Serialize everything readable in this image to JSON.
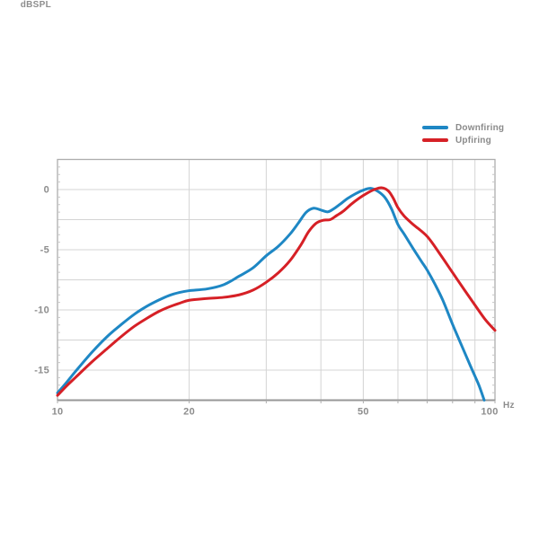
{
  "colors": {
    "background": "#ffffff",
    "grid": "#d4d4d4",
    "border": "#adadad",
    "bottom_border": "#979797",
    "minor_tick": "#c6c6c6",
    "label_text": "#8d8d8d",
    "downfiring": "#1e87c4",
    "upfiring": "#d62026"
  },
  "chart_data": {
    "type": "line",
    "title": "",
    "xlabel": "Hz",
    "ylabel": "dBSPL",
    "x_scale": "log",
    "xlim": [
      10,
      100
    ],
    "ylim": [
      -17.5,
      2.5
    ],
    "grid": true,
    "legend_position": "top-right",
    "x_tick_values": [
      10,
      20,
      50,
      100
    ],
    "x_gridline_values": [
      20,
      30,
      40,
      50,
      60,
      70,
      80,
      90
    ],
    "y_tick_values": [
      0,
      -5,
      -10,
      -15
    ],
    "y_gridline_values": [
      0,
      -2.5,
      -5,
      -7.5,
      -10,
      -12.5,
      -15
    ],
    "y_minor_tick_step": 0.625,
    "series": [
      {
        "name": "Downfiring",
        "color": "#1e87c4",
        "points": [
          [
            10,
            -16.9
          ],
          [
            10.5,
            -16.0
          ],
          [
            11,
            -15.1
          ],
          [
            12,
            -13.5
          ],
          [
            13,
            -12.2
          ],
          [
            14,
            -11.2
          ],
          [
            15,
            -10.35
          ],
          [
            16,
            -9.7
          ],
          [
            17,
            -9.2
          ],
          [
            18,
            -8.8
          ],
          [
            19,
            -8.55
          ],
          [
            20,
            -8.4
          ],
          [
            22,
            -8.25
          ],
          [
            24,
            -7.9
          ],
          [
            26,
            -7.2
          ],
          [
            28,
            -6.5
          ],
          [
            30,
            -5.5
          ],
          [
            32,
            -4.7
          ],
          [
            34,
            -3.7
          ],
          [
            35.5,
            -2.8
          ],
          [
            37,
            -1.9
          ],
          [
            38.5,
            -1.55
          ],
          [
            40,
            -1.7
          ],
          [
            41.5,
            -1.85
          ],
          [
            43,
            -1.55
          ],
          [
            44.5,
            -1.15
          ],
          [
            46,
            -0.75
          ],
          [
            48,
            -0.35
          ],
          [
            50,
            -0.05
          ],
          [
            52,
            0.1
          ],
          [
            54,
            -0.15
          ],
          [
            56,
            -0.65
          ],
          [
            58,
            -1.6
          ],
          [
            60,
            -2.9
          ],
          [
            62,
            -3.7
          ],
          [
            65,
            -4.9
          ],
          [
            68,
            -6.0
          ],
          [
            70,
            -6.7
          ],
          [
            73,
            -7.9
          ],
          [
            76,
            -9.2
          ],
          [
            80,
            -11.2
          ],
          [
            84,
            -13.0
          ],
          [
            88,
            -14.7
          ],
          [
            90,
            -15.5
          ],
          [
            92,
            -16.3
          ],
          [
            94.5,
            -17.5
          ]
        ]
      },
      {
        "name": "Upfiring",
        "color": "#d62026",
        "points": [
          [
            10,
            -17.1
          ],
          [
            10.5,
            -16.3
          ],
          [
            11,
            -15.6
          ],
          [
            12,
            -14.3
          ],
          [
            13,
            -13.2
          ],
          [
            14,
            -12.2
          ],
          [
            15,
            -11.35
          ],
          [
            16,
            -10.7
          ],
          [
            17,
            -10.15
          ],
          [
            18,
            -9.75
          ],
          [
            19,
            -9.45
          ],
          [
            20,
            -9.2
          ],
          [
            22,
            -9.05
          ],
          [
            24,
            -8.95
          ],
          [
            26,
            -8.75
          ],
          [
            28,
            -8.35
          ],
          [
            30,
            -7.7
          ],
          [
            32,
            -6.9
          ],
          [
            34,
            -5.9
          ],
          [
            36,
            -4.6
          ],
          [
            37.5,
            -3.5
          ],
          [
            39,
            -2.8
          ],
          [
            40.5,
            -2.55
          ],
          [
            42,
            -2.5
          ],
          [
            43.5,
            -2.15
          ],
          [
            45,
            -1.8
          ],
          [
            47,
            -1.2
          ],
          [
            49,
            -0.7
          ],
          [
            51,
            -0.3
          ],
          [
            53,
            0.0
          ],
          [
            55,
            0.15
          ],
          [
            57,
            -0.1
          ],
          [
            58.5,
            -0.7
          ],
          [
            60,
            -1.5
          ],
          [
            62,
            -2.2
          ],
          [
            65,
            -2.9
          ],
          [
            70,
            -3.9
          ],
          [
            75,
            -5.4
          ],
          [
            80,
            -6.9
          ],
          [
            85,
            -8.3
          ],
          [
            90,
            -9.6
          ],
          [
            95,
            -10.8
          ],
          [
            100,
            -11.7
          ]
        ]
      }
    ]
  }
}
